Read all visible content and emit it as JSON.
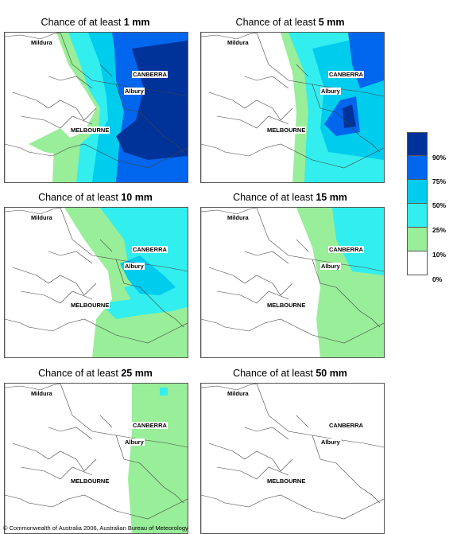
{
  "colors": {
    "p0_10": "#ffffff",
    "p10_25": "#99ee99",
    "p25_50": "#33eeee",
    "p50_75": "#00ccee",
    "p75_90": "#0066ee",
    "p90_100": "#003399"
  },
  "panels": [
    {
      "title_prefix": "Chance of at least ",
      "amount": "1 mm"
    },
    {
      "title_prefix": "Chance of at least ",
      "amount": "5 mm"
    },
    {
      "title_prefix": "Chance of at least ",
      "amount": "10 mm"
    },
    {
      "title_prefix": "Chance of at least ",
      "amount": "15 mm"
    },
    {
      "title_prefix": "Chance of at least ",
      "amount": "25 mm"
    },
    {
      "title_prefix": "Chance of at least ",
      "amount": "50 mm"
    }
  ],
  "cities": {
    "mildura": "Mildura",
    "canberra": "CANBERRA",
    "albury": "Albury",
    "melbourne": "MELBOURNE"
  },
  "legend": {
    "labels": [
      "90%",
      "75%",
      "50%",
      "25%",
      "10%",
      "0%"
    ]
  },
  "copyright": "© Commonwealth of Australia 2006, Australian Bureau of Meteorology"
}
